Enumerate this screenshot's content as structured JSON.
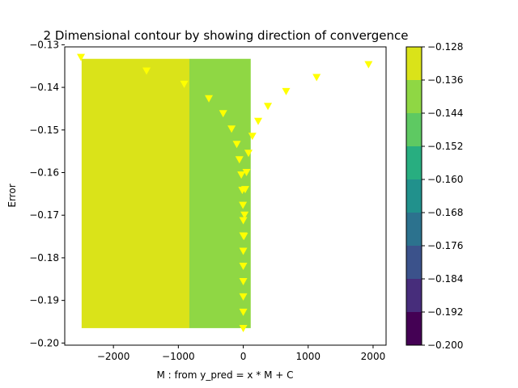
{
  "chart_data": {
    "type": "contour",
    "title": "2 Dimensional contour by showing direction of convergence",
    "xlabel": "M : from y_pred = x * M + C",
    "ylabel": "Error",
    "xlim": [
      -2750,
      2200
    ],
    "ylim": [
      -0.2005,
      -0.1305
    ],
    "x_ticks": [
      -2000,
      -1000,
      0,
      1000,
      2000
    ],
    "x_tick_labels": [
      "−2000",
      "−1000",
      "0",
      "1000",
      "2000"
    ],
    "y_ticks": [
      -0.13,
      -0.14,
      -0.15,
      -0.16,
      -0.17,
      -0.18,
      -0.19,
      -0.2
    ],
    "y_tick_labels": [
      "−0.13",
      "−0.14",
      "−0.15",
      "−0.16",
      "−0.17",
      "−0.18",
      "−0.19",
      "−0.20"
    ],
    "contour_regions": [
      {
        "x_range": [
          -2490,
          -830
        ],
        "y_range": [
          -0.1965,
          -0.1333
        ],
        "level_range": [
          -0.136,
          -0.128
        ],
        "color": "#dae319"
      },
      {
        "x_range": [
          -830,
          115
        ],
        "y_range": [
          -0.1965,
          -0.1333
        ],
        "level_range": [
          -0.144,
          -0.136
        ],
        "color": "#8fd744"
      }
    ],
    "colorbar": {
      "levels": [
        -0.2,
        -0.192,
        -0.184,
        -0.176,
        -0.168,
        -0.16,
        -0.152,
        -0.144,
        -0.136,
        -0.128
      ],
      "tick_labels": [
        "−0.200",
        "−0.192",
        "−0.184",
        "−0.176",
        "−0.168",
        "−0.160",
        "−0.152",
        "−0.144",
        "−0.136",
        "−0.128"
      ],
      "colors": [
        "#440154",
        "#472d7b",
        "#3b528b",
        "#2c728e",
        "#21918c",
        "#28ae80",
        "#5ec962",
        "#8fd744",
        "#dae319"
      ]
    },
    "path_points": {
      "marker": "down-triangle",
      "color": "#ffff00",
      "points": [
        [
          -2500,
          -0.133
        ],
        [
          -1490,
          -0.1362
        ],
        [
          -910,
          -0.1393
        ],
        [
          -530,
          -0.1427
        ],
        [
          -310,
          -0.1462
        ],
        [
          -180,
          -0.1498
        ],
        [
          -100,
          -0.1534
        ],
        [
          -60,
          -0.157
        ],
        [
          -30,
          -0.1606
        ],
        [
          -15,
          -0.1642
        ],
        [
          -5,
          -0.1677
        ],
        [
          0,
          -0.1713
        ],
        [
          0,
          -0.1749
        ],
        [
          0,
          -0.1785
        ],
        [
          0,
          -0.182
        ],
        [
          0,
          -0.1856
        ],
        [
          0,
          -0.1892
        ],
        [
          0,
          -0.1928
        ],
        [
          0,
          -0.1966
        ],
        [
          10,
          -0.175
        ],
        [
          20,
          -0.17
        ],
        [
          30,
          -0.164
        ],
        [
          50,
          -0.16
        ],
        [
          80,
          -0.1555
        ],
        [
          140,
          -0.1515
        ],
        [
          230,
          -0.148
        ],
        [
          380,
          -0.1445
        ],
        [
          660,
          -0.141
        ],
        [
          1130,
          -0.1377
        ],
        [
          1930,
          -0.1347
        ]
      ]
    }
  }
}
